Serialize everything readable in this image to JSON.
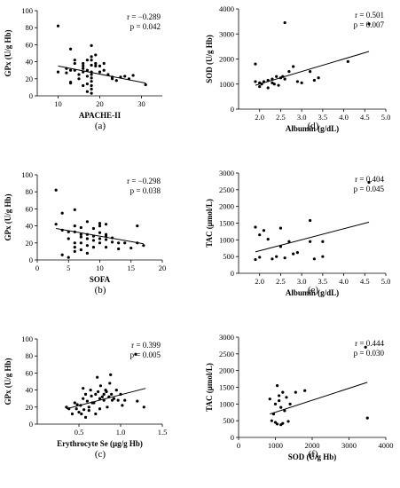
{
  "chart_data": [
    {
      "type": "scatter",
      "subplot": "(a)",
      "xlabel": "APACHE-II",
      "ylabel": "GPx (U/g Hb)",
      "xlim": [
        5,
        35
      ],
      "ylim": [
        0,
        100
      ],
      "xticks": [
        "10",
        "20",
        "30"
      ],
      "yticks": [
        "0",
        "20",
        "40",
        "60",
        "80",
        "100"
      ],
      "stats": {
        "r": "r = −0.289",
        "p": "p = 0.042"
      },
      "fit": [
        [
          10,
          35
        ],
        [
          31,
          15
        ]
      ],
      "points": [
        [
          10,
          82
        ],
        [
          10,
          28
        ],
        [
          12,
          32
        ],
        [
          12,
          27
        ],
        [
          13,
          55
        ],
        [
          13,
          30
        ],
        [
          13,
          16
        ],
        [
          13,
          15
        ],
        [
          14,
          42
        ],
        [
          14,
          38
        ],
        [
          14,
          30
        ],
        [
          15,
          20
        ],
        [
          15,
          25
        ],
        [
          16,
          38
        ],
        [
          16,
          35
        ],
        [
          16,
          28
        ],
        [
          16,
          12
        ],
        [
          16,
          32
        ],
        [
          17,
          30
        ],
        [
          17,
          14
        ],
        [
          17,
          5
        ],
        [
          17,
          42
        ],
        [
          17,
          23
        ],
        [
          18,
          25
        ],
        [
          18,
          46
        ],
        [
          18,
          42
        ],
        [
          18,
          36
        ],
        [
          18,
          17
        ],
        [
          18,
          12
        ],
        [
          18,
          21
        ],
        [
          18,
          59
        ],
        [
          18,
          8
        ],
        [
          18,
          28
        ],
        [
          18,
          3
        ],
        [
          19,
          35
        ],
        [
          19,
          38
        ],
        [
          19,
          48
        ],
        [
          20,
          28
        ],
        [
          20,
          35
        ],
        [
          21,
          30
        ],
        [
          21,
          38
        ],
        [
          22,
          25
        ],
        [
          23,
          22
        ],
        [
          23,
          20
        ],
        [
          24,
          18
        ],
        [
          25,
          22
        ],
        [
          26,
          23
        ],
        [
          27,
          20
        ],
        [
          28,
          24
        ],
        [
          31,
          13
        ]
      ]
    },
    {
      "type": "scatter",
      "subplot": "(b)",
      "xlabel": "SOFA",
      "ylabel": "GPx (U/g Hb)",
      "xlim": [
        0,
        20
      ],
      "ylim": [
        0,
        100
      ],
      "xticks": [
        "0",
        "5",
        "10",
        "15",
        "20"
      ],
      "yticks": [
        "0",
        "20",
        "40",
        "60",
        "80",
        "100"
      ],
      "stats": {
        "r": "r = −0.298",
        "p": "p = 0.038"
      },
      "fit": [
        [
          3,
          37
        ],
        [
          17,
          19
        ]
      ],
      "points": [
        [
          3,
          82
        ],
        [
          3,
          42
        ],
        [
          4,
          55
        ],
        [
          4,
          35
        ],
        [
          4,
          6
        ],
        [
          5,
          33
        ],
        [
          5,
          25
        ],
        [
          5,
          3
        ],
        [
          6,
          33
        ],
        [
          6,
          20
        ],
        [
          6,
          59
        ],
        [
          6,
          40
        ],
        [
          6,
          15
        ],
        [
          6,
          10
        ],
        [
          7,
          38
        ],
        [
          7,
          30
        ],
        [
          7,
          27
        ],
        [
          7,
          20
        ],
        [
          7,
          12
        ],
        [
          8,
          30
        ],
        [
          8,
          25
        ],
        [
          8,
          17
        ],
        [
          8,
          45
        ],
        [
          8,
          8
        ],
        [
          9,
          37
        ],
        [
          9,
          28
        ],
        [
          9,
          23
        ],
        [
          9,
          15
        ],
        [
          10,
          32
        ],
        [
          10,
          25
        ],
        [
          10,
          43
        ],
        [
          10,
          40
        ],
        [
          10,
          20
        ],
        [
          11,
          30
        ],
        [
          11,
          28
        ],
        [
          11,
          24
        ],
        [
          11,
          42
        ],
        [
          11,
          15
        ],
        [
          12,
          26
        ],
        [
          12,
          21
        ],
        [
          13,
          20
        ],
        [
          13,
          13
        ],
        [
          14,
          20
        ],
        [
          15,
          14
        ],
        [
          16,
          40
        ],
        [
          16,
          20
        ],
        [
          17,
          17
        ]
      ]
    },
    {
      "type": "scatter",
      "subplot": "(c)",
      "xlabel": "Erythrocyte Se (μg/g Hb)",
      "ylabel": "GPx (U/g Hb)",
      "xlim": [
        0,
        1.5
      ],
      "ylim": [
        0,
        100
      ],
      "xticks": [
        "0.5",
        "1.0",
        "1.5"
      ],
      "yticks": [
        "0",
        "20",
        "40",
        "60",
        "80",
        "100"
      ],
      "stats": {
        "r": "r = 0.399",
        "p": "p = 0.005"
      },
      "fit": [
        [
          0.35,
          18
        ],
        [
          1.3,
          42
        ]
      ],
      "points": [
        [
          0.35,
          20
        ],
        [
          0.38,
          18
        ],
        [
          0.42,
          12
        ],
        [
          0.45,
          25
        ],
        [
          0.47,
          18
        ],
        [
          0.48,
          23
        ],
        [
          0.5,
          14
        ],
        [
          0.52,
          22
        ],
        [
          0.53,
          12
        ],
        [
          0.55,
          42
        ],
        [
          0.55,
          30
        ],
        [
          0.56,
          17
        ],
        [
          0.58,
          35
        ],
        [
          0.58,
          8
        ],
        [
          0.6,
          27
        ],
        [
          0.62,
          20
        ],
        [
          0.62,
          16
        ],
        [
          0.64,
          40
        ],
        [
          0.65,
          33
        ],
        [
          0.66,
          25
        ],
        [
          0.68,
          25
        ],
        [
          0.7,
          35
        ],
        [
          0.7,
          12
        ],
        [
          0.72,
          55
        ],
        [
          0.73,
          38
        ],
        [
          0.75,
          18
        ],
        [
          0.75,
          30
        ],
        [
          0.76,
          45
        ],
        [
          0.78,
          32
        ],
        [
          0.8,
          28
        ],
        [
          0.8,
          35
        ],
        [
          0.82,
          40
        ],
        [
          0.83,
          38
        ],
        [
          0.84,
          20
        ],
        [
          0.86,
          32
        ],
        [
          0.87,
          48
        ],
        [
          0.88,
          58
        ],
        [
          0.89,
          35
        ],
        [
          0.9,
          28
        ],
        [
          0.92,
          30
        ],
        [
          0.95,
          40
        ],
        [
          0.97,
          28
        ],
        [
          1.0,
          35
        ],
        [
          1.02,
          22
        ],
        [
          1.05,
          28
        ],
        [
          1.18,
          82
        ],
        [
          1.2,
          27
        ],
        [
          1.28,
          20
        ]
      ]
    },
    {
      "type": "scatter",
      "subplot": "(d)",
      "xlabel": "Albumin (g/dL)",
      "ylabel": "SOD (U/g Hb)",
      "xlim": [
        1.5,
        5
      ],
      "ylim": [
        0,
        4000
      ],
      "xticks": [
        "2.0",
        "2.5",
        "3.0",
        "3.5",
        "4.0",
        "4.5",
        "5.0"
      ],
      "yticks": [
        "0",
        "1000",
        "2000",
        "3000",
        "4000"
      ],
      "stats": {
        "r": "r = 0.501",
        "p": "p = 0.007"
      },
      "fit": [
        [
          1.9,
          950
        ],
        [
          4.6,
          2300
        ]
      ],
      "points": [
        [
          1.9,
          1800
        ],
        [
          1.9,
          1100
        ],
        [
          2.0,
          1050
        ],
        [
          2.0,
          900
        ],
        [
          2.05,
          1000
        ],
        [
          2.1,
          1100
        ],
        [
          2.2,
          1150
        ],
        [
          2.2,
          850
        ],
        [
          2.3,
          1200
        ],
        [
          2.3,
          1050
        ],
        [
          2.35,
          1000
        ],
        [
          2.4,
          1300
        ],
        [
          2.45,
          950
        ],
        [
          2.5,
          1250
        ],
        [
          2.55,
          1300
        ],
        [
          2.6,
          3450
        ],
        [
          2.6,
          1200
        ],
        [
          2.7,
          1500
        ],
        [
          2.8,
          1700
        ],
        [
          2.9,
          1100
        ],
        [
          3.0,
          1050
        ],
        [
          3.2,
          1500
        ],
        [
          3.3,
          1150
        ],
        [
          3.4,
          1250
        ],
        [
          4.1,
          1900
        ],
        [
          4.6,
          3400
        ]
      ]
    },
    {
      "type": "scatter",
      "subplot": "(e)",
      "xlabel": "Albumin (g/dL)",
      "ylabel": "TAC (μmol/L)",
      "xlim": [
        1.5,
        5
      ],
      "ylim": [
        0,
        3000
      ],
      "xticks": [
        "2.0",
        "2.5",
        "3.0",
        "3.5",
        "4.0",
        "4.5",
        "5.0"
      ],
      "yticks": [
        "0",
        "500",
        "1000",
        "1500",
        "2000",
        "2500",
        "3000"
      ],
      "stats": {
        "r": "r = 0.404",
        "p": "p = 0.045"
      },
      "fit": [
        [
          1.9,
          640
        ],
        [
          4.6,
          1530
        ]
      ],
      "points": [
        [
          1.9,
          1380
        ],
        [
          1.9,
          410
        ],
        [
          2.0,
          1150
        ],
        [
          2.0,
          480
        ],
        [
          2.1,
          1280
        ],
        [
          2.2,
          1020
        ],
        [
          2.3,
          430
        ],
        [
          2.4,
          500
        ],
        [
          2.5,
          1350
        ],
        [
          2.5,
          800
        ],
        [
          2.6,
          460
        ],
        [
          2.7,
          950
        ],
        [
          2.8,
          580
        ],
        [
          2.9,
          620
        ],
        [
          3.2,
          1580
        ],
        [
          3.2,
          950
        ],
        [
          3.3,
          430
        ],
        [
          3.5,
          950
        ],
        [
          3.5,
          500
        ],
        [
          4.6,
          2720
        ]
      ]
    },
    {
      "type": "scatter",
      "subplot": "(f)",
      "xlabel": "SOD (U/g Hb)",
      "ylabel": "TAC (μmol/L)",
      "xlim": [
        0,
        4000
      ],
      "ylim": [
        0,
        3000
      ],
      "xticks": [
        "0",
        "1000",
        "2000",
        "3000",
        "4000"
      ],
      "yticks": [
        "0",
        "500",
        "1000",
        "1500",
        "2000",
        "2500",
        "3000"
      ],
      "stats": {
        "r": "r = 0.444",
        "p": "p = 0.030"
      },
      "fit": [
        [
          850,
          700
        ],
        [
          3500,
          1650
        ]
      ],
      "points": [
        [
          850,
          1150
        ],
        [
          900,
          500
        ],
        [
          950,
          700
        ],
        [
          1000,
          1000
        ],
        [
          1000,
          450
        ],
        [
          1050,
          1550
        ],
        [
          1050,
          400
        ],
        [
          1100,
          1250
        ],
        [
          1100,
          1100
        ],
        [
          1150,
          900
        ],
        [
          1150,
          380
        ],
        [
          1200,
          1350
        ],
        [
          1200,
          420
        ],
        [
          1250,
          800
        ],
        [
          1300,
          1200
        ],
        [
          1350,
          480
        ],
        [
          1400,
          1000
        ],
        [
          1550,
          1350
        ],
        [
          1800,
          1400
        ],
        [
          3450,
          2700
        ],
        [
          3500,
          580
        ]
      ]
    }
  ]
}
